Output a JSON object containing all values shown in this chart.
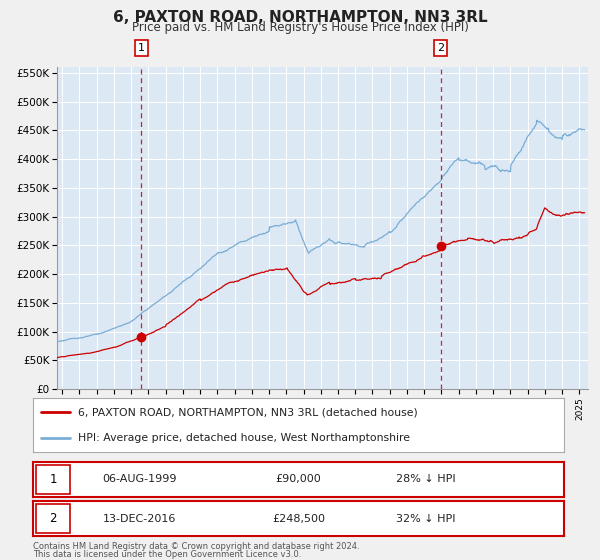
{
  "title": "6, PAXTON ROAD, NORTHAMPTON, NN3 3RL",
  "subtitle": "Price paid vs. HM Land Registry's House Price Index (HPI)",
  "ylim": [
    0,
    560000
  ],
  "yticks": [
    0,
    50000,
    100000,
    150000,
    200000,
    250000,
    300000,
    350000,
    400000,
    450000,
    500000,
    550000
  ],
  "xlim_start": 1994.7,
  "xlim_end": 2025.5,
  "legend_label_red": "6, PAXTON ROAD, NORTHAMPTON, NN3 3RL (detached house)",
  "legend_label_blue": "HPI: Average price, detached house, West Northamptonshire",
  "sale1_date": "06-AUG-1999",
  "sale1_price": "£90,000",
  "sale1_hpi": "28% ↓ HPI",
  "sale1_x": 1999.6,
  "sale1_y": 90000,
  "sale2_date": "13-DEC-2016",
  "sale2_price": "£248,500",
  "sale2_hpi": "32% ↓ HPI",
  "sale2_x": 2016.95,
  "sale2_y": 248500,
  "vline1_x": 1999.6,
  "vline2_x": 2016.95,
  "footnote1": "Contains HM Land Registry data © Crown copyright and database right 2024.",
  "footnote2": "This data is licensed under the Open Government Licence v3.0.",
  "bg_color": "#dce9f5",
  "grid_color": "#ffffff",
  "fig_bg_color": "#f0f0f0",
  "red_color": "#cc0000",
  "blue_color": "#7aadd4",
  "title_fontsize": 11,
  "subtitle_fontsize": 8.5
}
